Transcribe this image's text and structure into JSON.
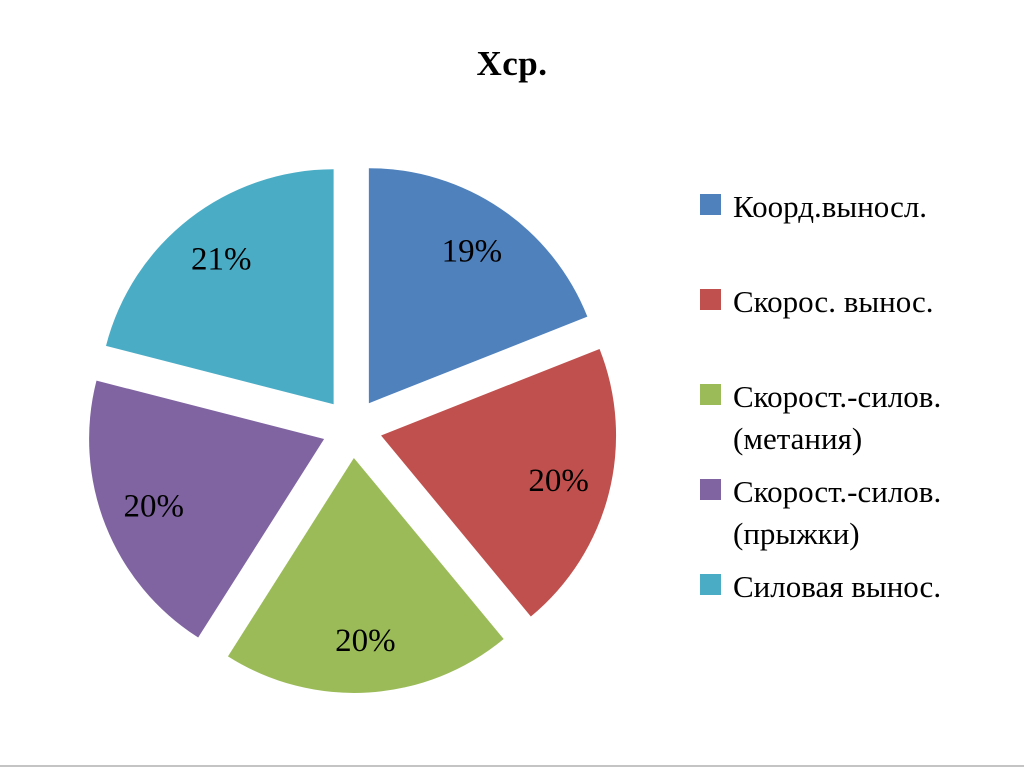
{
  "title": "Хср.",
  "chart_data": {
    "type": "pie",
    "title": "Хср.",
    "labels": [
      "Коорд.выносл.",
      "Скорос. вынос.",
      "Скорост.-силов. (метания)",
      "Скорост.-силов. (прыжки)",
      "Силовая вынос."
    ],
    "values": [
      19,
      20,
      20,
      20,
      21
    ],
    "value_labels": [
      "19%",
      "20%",
      "20%",
      "20%",
      "21%"
    ],
    "colors": [
      "#4f81bd",
      "#c0504d",
      "#9bbb59",
      "#8064a2",
      "#4bacc6"
    ],
    "start_angle_deg": 0,
    "direction": "clockwise",
    "exploded": true,
    "legend_position": "right"
  },
  "legend": {
    "items": [
      {
        "label": "Коорд.выносл.",
        "color": "#4f81bd"
      },
      {
        "label": "Скорос. вынос.",
        "color": "#c0504d"
      },
      {
        "label": "Скорост.-силов.\n(метания)",
        "color": "#9bbb59"
      },
      {
        "label": "Скорост.-силов.\n(прыжки)",
        "color": "#8064a2"
      },
      {
        "label": "Силовая вынос.",
        "color": "#4bacc6"
      }
    ]
  }
}
